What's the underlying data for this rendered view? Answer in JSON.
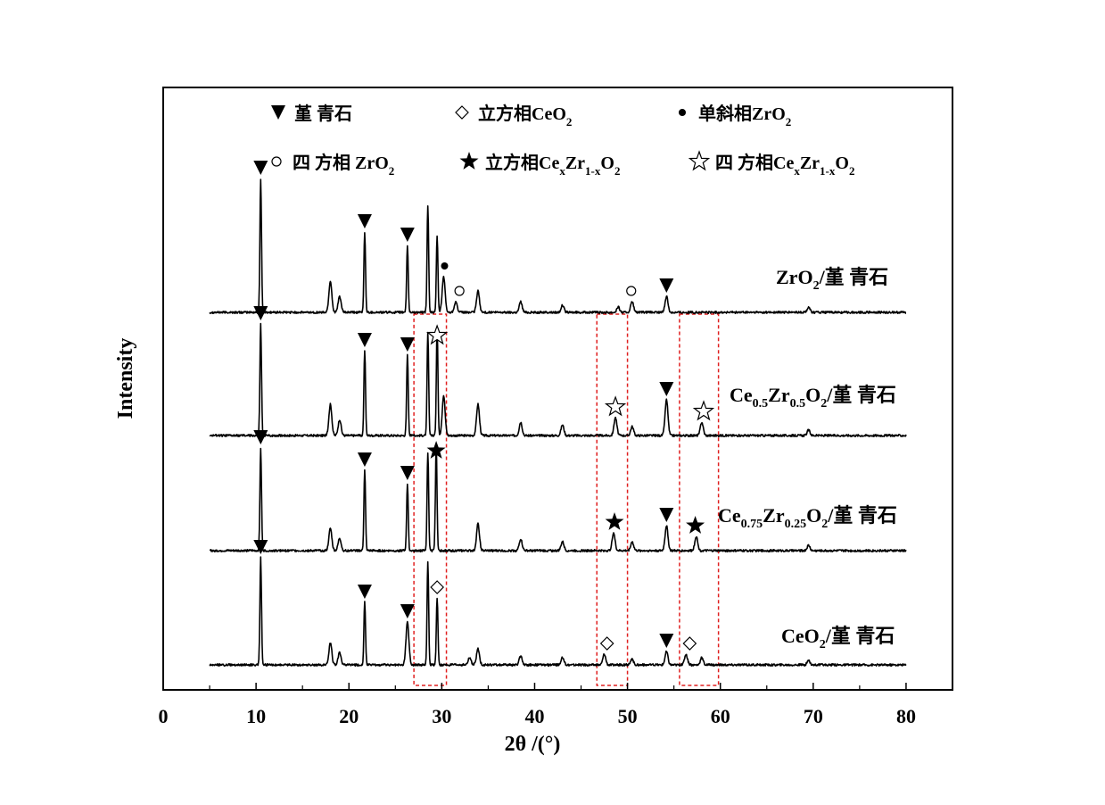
{
  "chart_data": {
    "type": "line",
    "title": "",
    "xlabel": "2θ /(°)",
    "ylabel": "Intensity",
    "xlim": [
      0,
      85
    ],
    "xticks": [
      0,
      10,
      20,
      30,
      40,
      50,
      60,
      70,
      80
    ],
    "xtick_labels": [
      "0",
      "10",
      "20",
      "30",
      "40",
      "50",
      "60",
      "70",
      "80"
    ],
    "x_range_of_data": [
      5,
      80
    ],
    "legend": {
      "placement": "top",
      "entries": [
        {
          "symbol": "filled-down-triangle",
          "text": "堇 青石"
        },
        {
          "symbol": "open-diamond",
          "text": "立方相CeO",
          "sub": "2"
        },
        {
          "symbol": "filled-circle",
          "text": "单斜相ZrO",
          "sub": "2"
        },
        {
          "symbol": "open-circle",
          "text": "四 方相 ZrO",
          "sub": "2"
        },
        {
          "symbol": "filled-star",
          "text": "立方相Ce",
          "sub": "x",
          "text2": "Zr",
          "sub2": "1-x",
          "text3": "O",
          "sub3": "2"
        },
        {
          "symbol": "open-star",
          "text": "四 方相Ce",
          "sub": "x",
          "text2": "Zr",
          "sub2": "1-x",
          "text3": "O",
          "sub3": "2"
        }
      ]
    },
    "series": [
      {
        "name": "ZrO2/堇 青石",
        "label_parts": [
          [
            "ZrO",
            ""
          ],
          [
            "2",
            "sub"
          ],
          [
            "/堇 青石",
            ""
          ]
        ],
        "baseline": 0,
        "peaks": [
          [
            10.5,
            150
          ],
          [
            18,
            35
          ],
          [
            19,
            18
          ],
          [
            21.7,
            90
          ],
          [
            26.3,
            75
          ],
          [
            28.5,
            120
          ],
          [
            29.5,
            85
          ],
          [
            30.2,
            40
          ],
          [
            31.5,
            12
          ],
          [
            33.9,
            24
          ],
          [
            38.5,
            12
          ],
          [
            43.0,
            8
          ],
          [
            49.0,
            6
          ],
          [
            50.5,
            12
          ],
          [
            54.2,
            18
          ],
          [
            69.5,
            6
          ]
        ],
        "markers": [
          {
            "symbol": "filled-down-triangle",
            "x": 10.5
          },
          {
            "symbol": "filled-down-triangle",
            "x": 21.7
          },
          {
            "symbol": "filled-down-triangle",
            "x": 26.3
          },
          {
            "symbol": "filled-circle",
            "x": 30.3
          },
          {
            "symbol": "open-circle",
            "x": 31.9
          },
          {
            "symbol": "open-circle",
            "x": 50.4
          },
          {
            "symbol": "filled-down-triangle",
            "x": 54.2
          }
        ]
      },
      {
        "name": "Ce0.5Zr0.5O2/堇 青石",
        "label_parts": [
          [
            "Ce",
            ""
          ],
          [
            "0.5",
            "sub"
          ],
          [
            "Zr",
            ""
          ],
          [
            "0.5",
            "sub"
          ],
          [
            "O",
            ""
          ],
          [
            "2",
            "sub"
          ],
          [
            "/堇 青石",
            ""
          ]
        ],
        "baseline": 0,
        "peaks": [
          [
            10.5,
            125
          ],
          [
            18,
            35
          ],
          [
            19,
            18
          ],
          [
            21.7,
            95
          ],
          [
            26.3,
            90
          ],
          [
            28.5,
            115
          ],
          [
            29.5,
            120
          ],
          [
            30.2,
            45
          ],
          [
            33.9,
            35
          ],
          [
            38.5,
            15
          ],
          [
            43.0,
            12
          ],
          [
            48.7,
            20
          ],
          [
            50.5,
            10
          ],
          [
            54.2,
            40
          ],
          [
            58.0,
            15
          ],
          [
            69.5,
            6
          ]
        ],
        "markers": [
          {
            "symbol": "filled-down-triangle",
            "x": 10.5
          },
          {
            "symbol": "filled-down-triangle",
            "x": 21.7
          },
          {
            "symbol": "filled-down-triangle",
            "x": 26.3
          },
          {
            "symbol": "open-star",
            "x": 29.5
          },
          {
            "symbol": "open-star",
            "x": 48.7
          },
          {
            "symbol": "filled-down-triangle",
            "x": 54.2
          },
          {
            "symbol": "open-star",
            "x": 58.2
          }
        ]
      },
      {
        "name": "Ce0.75Zr0.25O2/堇 青石",
        "label_parts": [
          [
            "Ce",
            ""
          ],
          [
            "0.75",
            "sub"
          ],
          [
            "Zr",
            ""
          ],
          [
            "0.25",
            "sub"
          ],
          [
            "O",
            ""
          ],
          [
            "2",
            "sub"
          ],
          [
            "/堇 青石",
            ""
          ]
        ],
        "baseline": 0,
        "peaks": [
          [
            10.5,
            115
          ],
          [
            18,
            25
          ],
          [
            19,
            14
          ],
          [
            21.7,
            90
          ],
          [
            26.3,
            75
          ],
          [
            28.5,
            110
          ],
          [
            29.4,
            120
          ],
          [
            33.9,
            30
          ],
          [
            38.5,
            13
          ],
          [
            43.0,
            10
          ],
          [
            48.5,
            20
          ],
          [
            50.5,
            10
          ],
          [
            54.2,
            28
          ],
          [
            57.4,
            16
          ],
          [
            69.5,
            6
          ]
        ],
        "markers": [
          {
            "symbol": "filled-down-triangle",
            "x": 10.5
          },
          {
            "symbol": "filled-down-triangle",
            "x": 21.7
          },
          {
            "symbol": "filled-down-triangle",
            "x": 26.3
          },
          {
            "symbol": "filled-star",
            "x": 29.4
          },
          {
            "symbol": "filled-star",
            "x": 48.6
          },
          {
            "symbol": "filled-down-triangle",
            "x": 54.2
          },
          {
            "symbol": "filled-star",
            "x": 57.3
          }
        ]
      },
      {
        "name": "CeO2/堇 青石",
        "label_parts": [
          [
            "CeO",
            ""
          ],
          [
            "2",
            "sub"
          ],
          [
            "/堇 青石",
            ""
          ]
        ],
        "baseline": 0,
        "peaks": [
          [
            10.5,
            120
          ],
          [
            18,
            25
          ],
          [
            19,
            14
          ],
          [
            21.7,
            70
          ],
          [
            26.3,
            48
          ],
          [
            28.5,
            115
          ],
          [
            29.5,
            75
          ],
          [
            33.0,
            8
          ],
          [
            33.9,
            18
          ],
          [
            38.5,
            10
          ],
          [
            43.0,
            8
          ],
          [
            47.5,
            12
          ],
          [
            50.5,
            6
          ],
          [
            54.2,
            15
          ],
          [
            56.3,
            12
          ],
          [
            58.0,
            8
          ],
          [
            69.5,
            5
          ]
        ],
        "markers": [
          {
            "symbol": "filled-down-triangle",
            "x": 10.5
          },
          {
            "symbol": "filled-down-triangle",
            "x": 21.7
          },
          {
            "symbol": "filled-down-triangle",
            "x": 26.3
          },
          {
            "symbol": "open-diamond",
            "x": 29.5
          },
          {
            "symbol": "open-diamond",
            "x": 47.8
          },
          {
            "symbol": "filled-down-triangle",
            "x": 54.2
          },
          {
            "symbol": "open-diamond",
            "x": 56.7
          }
        ]
      }
    ],
    "highlight_regions_x": [
      [
        27,
        30.5
      ],
      [
        46.7,
        50
      ],
      [
        55.6,
        59.8
      ]
    ]
  }
}
